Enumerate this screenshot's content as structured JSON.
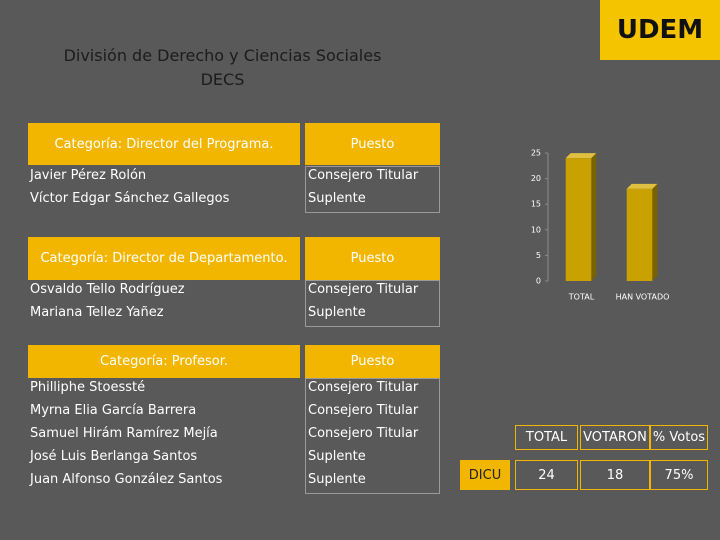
{
  "logo": "UDEM",
  "header": {
    "title": "División de Derecho y Ciencias Sociales",
    "subtitle": "DECS"
  },
  "sections": [
    {
      "category": "Categoría: Director del Programa.",
      "position_header": "Puesto",
      "rows": [
        [
          "Javier Pérez Rolón",
          "Consejero Titular"
        ],
        [
          "Víctor Edgar Sánchez Gallegos",
          "Suplente"
        ]
      ]
    },
    {
      "category": "Categoría: Director de Departamento.",
      "position_header": "Puesto",
      "rows": [
        [
          "Osvaldo Tello Rodríguez",
          "Consejero Titular"
        ],
        [
          "Mariana Tellez Yañez",
          "Suplente"
        ]
      ]
    },
    {
      "category": "Categoría: Profesor.",
      "position_header": "Puesto",
      "rows": [
        [
          "Philliphe Stoessté",
          "Consejero Titular"
        ],
        [
          "Myrna Elia García Barrera",
          "Consejero Titular"
        ],
        [
          "Samuel Hirám Ramírez Mejía",
          "Consejero Titular"
        ],
        [
          "José Luis Berlanga Santos",
          "Suplente"
        ],
        [
          "Juan Alfonso González Santos",
          "Suplente"
        ]
      ]
    }
  ],
  "results_table": {
    "columns": [
      "TOTAL",
      "VOTARON",
      "% Votos"
    ],
    "rows": [
      [
        "DICU",
        "24",
        "18",
        "75%"
      ]
    ]
  },
  "chart_data": {
    "type": "bar",
    "categories": [
      "TOTAL",
      "HAN VOTADO"
    ],
    "values": [
      24,
      18
    ],
    "color": "#c9a100",
    "ylim": [
      0,
      25
    ],
    "yticks": [
      0,
      5,
      10,
      15,
      20,
      25
    ]
  }
}
